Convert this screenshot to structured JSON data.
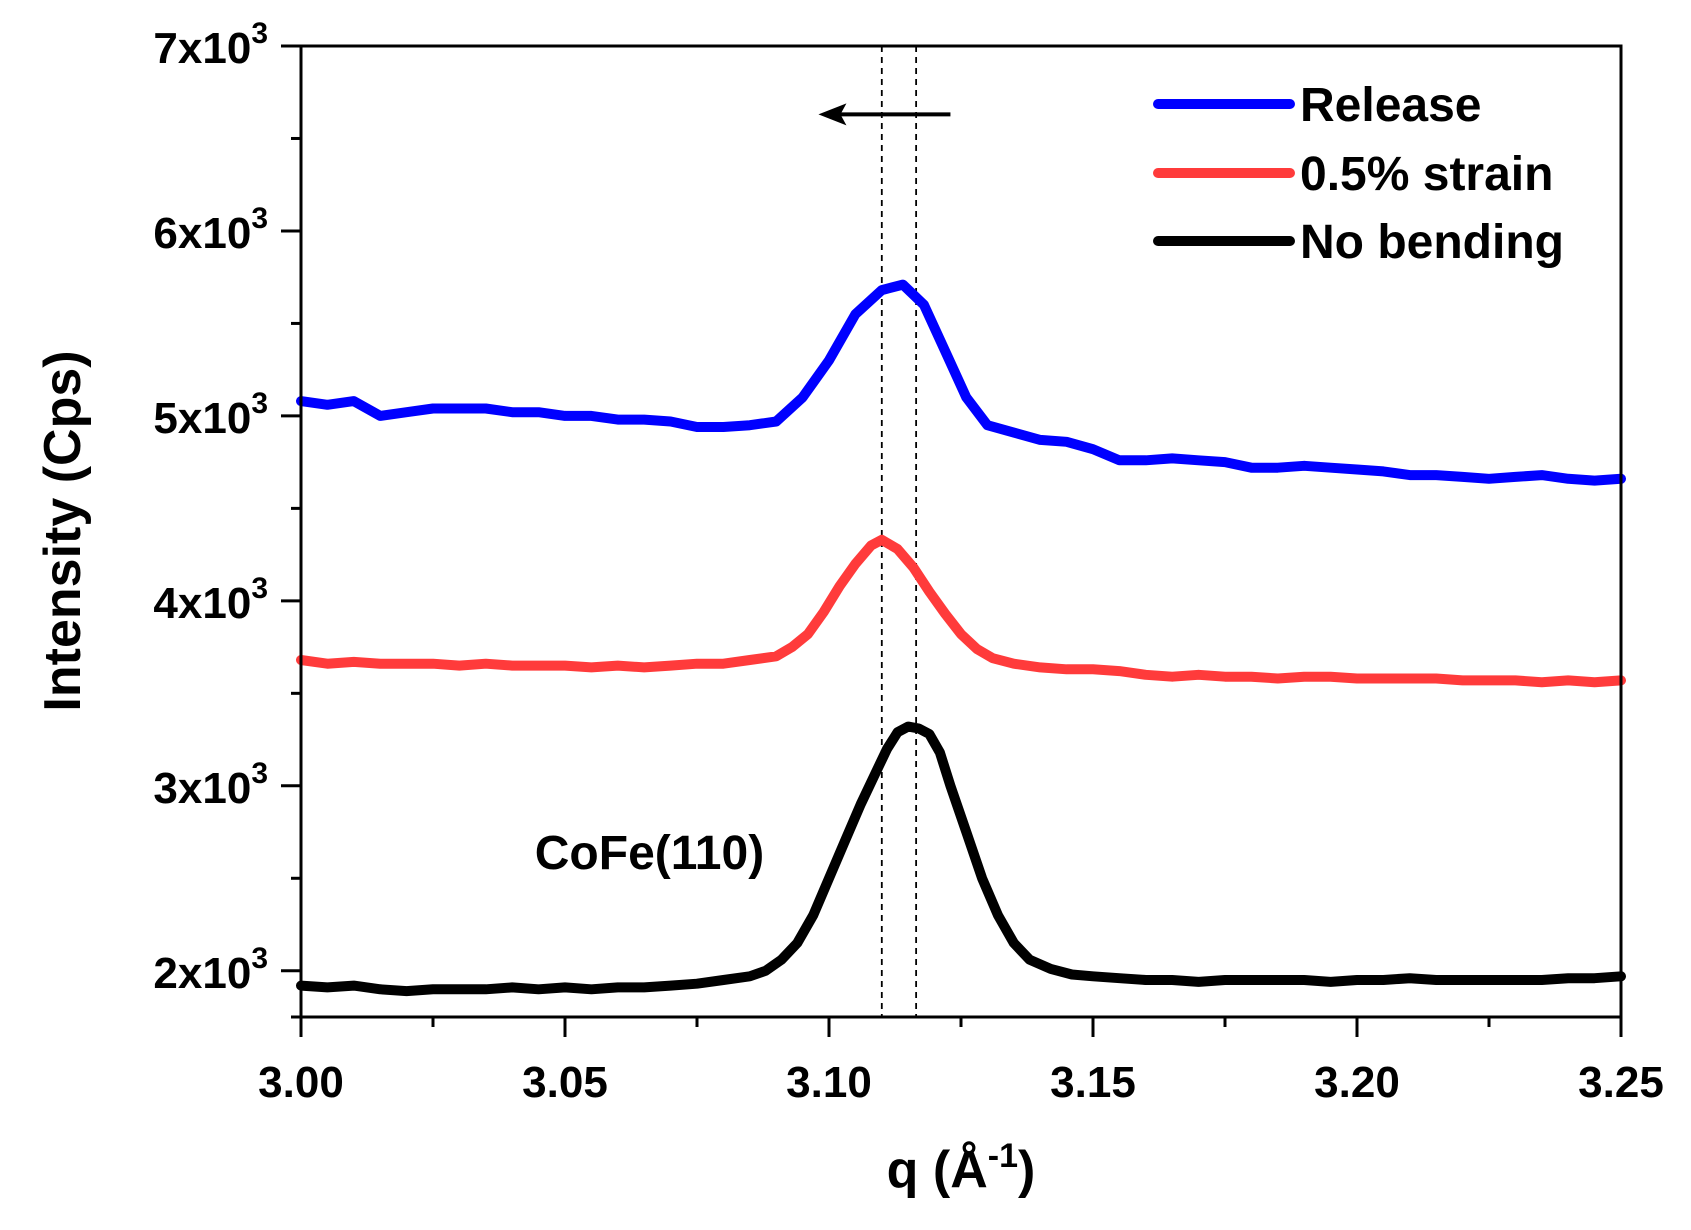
{
  "chart_data": {
    "type": "line",
    "title": "",
    "xlabel": "q (Å",
    "xlabel_sup": "-1",
    "xlabel_end": ")",
    "ylabel": "Intensity (Cps)",
    "xlim": [
      3.0,
      3.25
    ],
    "ylim": [
      1750,
      7000
    ],
    "x_ticks": [
      3.0,
      3.05,
      3.1,
      3.15,
      3.2,
      3.25
    ],
    "x_tick_labels": [
      "3.00",
      "3.05",
      "3.10",
      "3.15",
      "3.20",
      "3.25"
    ],
    "y_ticks": [
      2000,
      3000,
      4000,
      5000,
      6000,
      7000
    ],
    "y_tick_labels": [
      {
        "mantissa": "2x10",
        "exp": "3"
      },
      {
        "mantissa": "3x10",
        "exp": "3"
      },
      {
        "mantissa": "4x10",
        "exp": "3"
      },
      {
        "mantissa": "5x10",
        "exp": "3"
      },
      {
        "mantissa": "6x10",
        "exp": "3"
      },
      {
        "mantissa": "7x10",
        "exp": "3"
      }
    ],
    "legend_position": "top-right",
    "annotations": [
      {
        "text": "CoFe(110)",
        "x": 3.066,
        "y": 2550
      },
      {
        "type": "arrow",
        "direction": "left",
        "x_from": 3.123,
        "x_to": 3.098,
        "y": 6630
      }
    ],
    "reference_lines": [
      3.11,
      3.1165
    ],
    "series": [
      {
        "name": "Release",
        "color": "#0000ff",
        "x": [
          3.0,
          3.005,
          3.01,
          3.015,
          3.02,
          3.025,
          3.03,
          3.035,
          3.04,
          3.045,
          3.05,
          3.055,
          3.06,
          3.065,
          3.07,
          3.075,
          3.08,
          3.085,
          3.09,
          3.095,
          3.1,
          3.105,
          3.11,
          3.114,
          3.118,
          3.122,
          3.126,
          3.13,
          3.135,
          3.14,
          3.145,
          3.15,
          3.155,
          3.16,
          3.165,
          3.17,
          3.175,
          3.18,
          3.185,
          3.19,
          3.195,
          3.2,
          3.205,
          3.21,
          3.215,
          3.22,
          3.225,
          3.23,
          3.235,
          3.24,
          3.245,
          3.25
        ],
        "y": [
          5080,
          5060,
          5080,
          5000,
          5020,
          5040,
          5040,
          5040,
          5020,
          5020,
          5000,
          5000,
          4980,
          4980,
          4970,
          4940,
          4940,
          4950,
          4970,
          5100,
          5300,
          5550,
          5680,
          5710,
          5600,
          5350,
          5100,
          4950,
          4910,
          4870,
          4860,
          4820,
          4760,
          4760,
          4770,
          4760,
          4750,
          4720,
          4720,
          4730,
          4720,
          4710,
          4700,
          4680,
          4680,
          4670,
          4660,
          4670,
          4680,
          4660,
          4650,
          4660
        ]
      },
      {
        "name": "0.5% strain",
        "color": "#ff3b3b",
        "x": [
          3.0,
          3.005,
          3.01,
          3.015,
          3.02,
          3.025,
          3.03,
          3.035,
          3.04,
          3.045,
          3.05,
          3.055,
          3.06,
          3.065,
          3.07,
          3.075,
          3.08,
          3.085,
          3.09,
          3.093,
          3.096,
          3.099,
          3.102,
          3.105,
          3.108,
          3.11,
          3.113,
          3.116,
          3.119,
          3.122,
          3.125,
          3.128,
          3.131,
          3.135,
          3.14,
          3.145,
          3.15,
          3.155,
          3.16,
          3.165,
          3.17,
          3.175,
          3.18,
          3.185,
          3.19,
          3.195,
          3.2,
          3.205,
          3.21,
          3.215,
          3.22,
          3.225,
          3.23,
          3.235,
          3.24,
          3.245,
          3.25
        ],
        "y": [
          3680,
          3660,
          3670,
          3660,
          3660,
          3660,
          3650,
          3660,
          3650,
          3650,
          3650,
          3640,
          3650,
          3640,
          3650,
          3660,
          3660,
          3680,
          3700,
          3750,
          3820,
          3940,
          4080,
          4200,
          4300,
          4330,
          4280,
          4180,
          4050,
          3930,
          3820,
          3740,
          3690,
          3660,
          3640,
          3630,
          3630,
          3620,
          3600,
          3590,
          3600,
          3590,
          3590,
          3580,
          3590,
          3590,
          3580,
          3580,
          3580,
          3580,
          3570,
          3570,
          3570,
          3560,
          3570,
          3560,
          3570
        ]
      },
      {
        "name": "No bending",
        "color": "#000000",
        "x": [
          3.0,
          3.005,
          3.01,
          3.015,
          3.02,
          3.025,
          3.03,
          3.035,
          3.04,
          3.045,
          3.05,
          3.055,
          3.06,
          3.065,
          3.07,
          3.075,
          3.08,
          3.085,
          3.088,
          3.091,
          3.094,
          3.097,
          3.1,
          3.103,
          3.106,
          3.109,
          3.111,
          3.113,
          3.115,
          3.117,
          3.119,
          3.121,
          3.123,
          3.126,
          3.129,
          3.132,
          3.135,
          3.138,
          3.142,
          3.146,
          3.15,
          3.155,
          3.16,
          3.165,
          3.17,
          3.175,
          3.18,
          3.185,
          3.19,
          3.195,
          3.2,
          3.205,
          3.21,
          3.215,
          3.22,
          3.225,
          3.23,
          3.235,
          3.24,
          3.245,
          3.25
        ],
        "y": [
          1920,
          1910,
          1920,
          1900,
          1890,
          1900,
          1900,
          1900,
          1910,
          1900,
          1910,
          1900,
          1910,
          1910,
          1920,
          1930,
          1950,
          1970,
          2000,
          2060,
          2150,
          2300,
          2500,
          2700,
          2900,
          3080,
          3200,
          3290,
          3320,
          3310,
          3280,
          3180,
          3000,
          2750,
          2500,
          2300,
          2150,
          2060,
          2010,
          1980,
          1970,
          1960,
          1950,
          1950,
          1940,
          1950,
          1950,
          1950,
          1950,
          1940,
          1950,
          1950,
          1960,
          1950,
          1950,
          1950,
          1950,
          1950,
          1960,
          1960,
          1970
        ]
      }
    ]
  }
}
